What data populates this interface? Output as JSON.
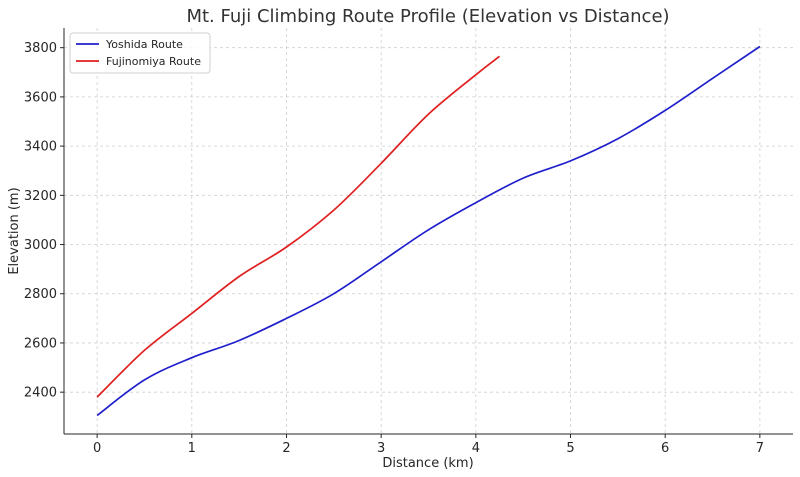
{
  "chart_data": {
    "type": "line",
    "title": "Mt. Fuji Climbing Route Profile (Elevation vs Distance)",
    "xlabel": "Distance (km)",
    "ylabel": "Elevation (m)",
    "xlim": [
      -0.35,
      7.35
    ],
    "ylim": [
      2230,
      3880
    ],
    "xticks": [
      0,
      1,
      2,
      3,
      4,
      5,
      6,
      7
    ],
    "yticks": [
      2400,
      2600,
      2800,
      3000,
      3200,
      3400,
      3600,
      3800
    ],
    "grid": true,
    "legend_position": "top-left",
    "series": [
      {
        "name": "Yoshida Route",
        "color": "#1f1fcc",
        "x": [
          0,
          0.5,
          1,
          1.5,
          2,
          2.5,
          3,
          3.5,
          4,
          4.5,
          5,
          5.5,
          6,
          6.5,
          7
        ],
        "y": [
          2305,
          2450,
          2540,
          2610,
          2700,
          2800,
          2930,
          3060,
          3170,
          3270,
          3340,
          3430,
          3545,
          3675,
          3805
        ]
      },
      {
        "name": "Fujinomiya Route",
        "color": "#e02020",
        "x": [
          0,
          0.5,
          1,
          1.5,
          2,
          2.5,
          3,
          3.5,
          4,
          4.25
        ],
        "y": [
          2380,
          2570,
          2720,
          2870,
          2990,
          3140,
          3330,
          3530,
          3690,
          3765
        ]
      }
    ]
  }
}
